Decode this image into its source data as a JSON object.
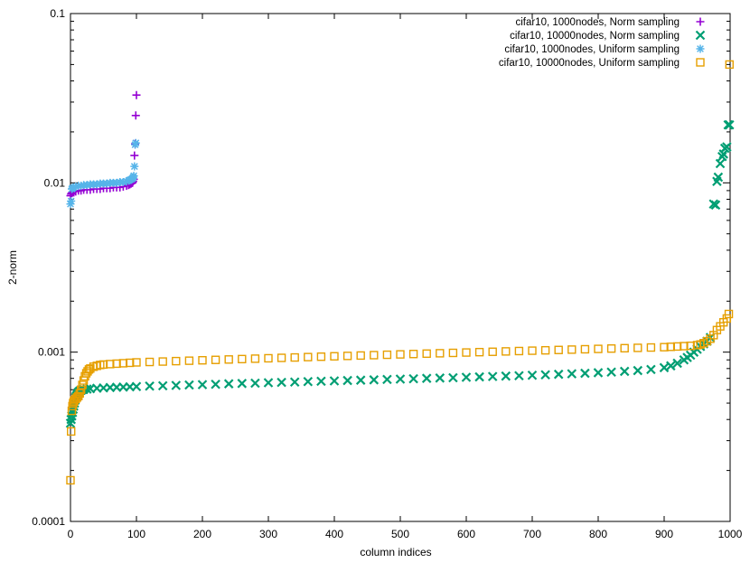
{
  "chart_data": {
    "type": "scatter",
    "title": "",
    "xlabel": "column indices",
    "ylabel": "2-norm",
    "xlim": [
      0,
      1000
    ],
    "ylim": [
      0.0001,
      0.1
    ],
    "yscale": "log",
    "grid": false,
    "legend_position": "top-right",
    "x_ticks": [
      0,
      100,
      200,
      300,
      400,
      500,
      600,
      700,
      800,
      900,
      1000
    ],
    "x_tick_labels": [
      "0",
      "100",
      "200",
      "300",
      "400",
      "500",
      "600",
      "700",
      "800",
      "900",
      "1000"
    ],
    "y_ticks": [
      0.0001,
      0.001,
      0.01,
      0.1
    ],
    "y_tick_labels": [
      "0.0001",
      "0.001",
      "0.01",
      "0.1"
    ],
    "series": [
      {
        "name": "cifar10, 1000nodes, Norm sampling",
        "marker": "plus",
        "color": "#9400d3",
        "x": [
          0,
          1,
          2,
          3,
          5,
          8,
          12,
          16,
          20,
          25,
          30,
          35,
          40,
          45,
          50,
          55,
          60,
          65,
          70,
          75,
          80,
          85,
          88,
          90,
          92,
          94,
          95,
          96,
          97,
          98,
          99,
          100
        ],
        "y": [
          0.0084,
          0.0086,
          0.0087,
          0.0088,
          0.0089,
          0.0089,
          0.009,
          0.009,
          0.0091,
          0.0091,
          0.0091,
          0.0092,
          0.0092,
          0.0092,
          0.0093,
          0.0093,
          0.0093,
          0.0094,
          0.0094,
          0.0094,
          0.0095,
          0.0096,
          0.0097,
          0.0098,
          0.0099,
          0.01,
          0.0102,
          0.0105,
          0.0145,
          0.017,
          0.025,
          0.033
        ]
      },
      {
        "name": "cifar10, 10000nodes, Norm sampling",
        "marker": "cross",
        "color": "#009e73",
        "x": [
          0,
          1,
          2,
          3,
          4,
          5,
          6,
          7,
          8,
          9,
          10,
          11,
          12,
          14,
          16,
          18,
          20,
          25,
          30,
          40,
          50,
          60,
          70,
          80,
          90,
          100,
          120,
          140,
          160,
          180,
          200,
          220,
          240,
          260,
          280,
          300,
          320,
          340,
          360,
          380,
          400,
          420,
          440,
          460,
          480,
          500,
          520,
          540,
          560,
          580,
          600,
          620,
          640,
          660,
          680,
          700,
          720,
          740,
          760,
          780,
          800,
          820,
          840,
          860,
          880,
          900,
          910,
          920,
          930,
          935,
          940,
          945,
          950,
          955,
          960,
          965,
          970,
          975,
          978,
          980,
          982,
          985,
          988,
          990,
          992,
          995,
          997,
          999
        ],
        "y": [
          0.00038,
          0.0004,
          0.00042,
          0.00044,
          0.00046,
          0.00048,
          0.0005,
          0.00052,
          0.00054,
          0.00055,
          0.00056,
          0.00057,
          0.00058,
          0.00059,
          0.000595,
          0.0006,
          0.000602,
          0.000605,
          0.000608,
          0.000612,
          0.000615,
          0.000618,
          0.00062,
          0.000622,
          0.000624,
          0.000626,
          0.00063,
          0.000633,
          0.000636,
          0.00064,
          0.000643,
          0.000646,
          0.00065,
          0.000653,
          0.000656,
          0.00066,
          0.000663,
          0.000666,
          0.00067,
          0.000673,
          0.000676,
          0.00068,
          0.000683,
          0.000686,
          0.00069,
          0.000693,
          0.000696,
          0.0007,
          0.000703,
          0.000706,
          0.00071,
          0.000714,
          0.000718,
          0.000722,
          0.000726,
          0.00073,
          0.000735,
          0.00074,
          0.000745,
          0.00075,
          0.000756,
          0.000762,
          0.00077,
          0.000778,
          0.00079,
          0.00081,
          0.00083,
          0.00086,
          0.0009,
          0.00093,
          0.00096,
          0.001,
          0.00104,
          0.00108,
          0.00112,
          0.00116,
          0.00122,
          0.0075,
          0.0074,
          0.0102,
          0.0108,
          0.013,
          0.0143,
          0.0148,
          0.016,
          0.0163,
          0.022,
          0.022
        ]
      },
      {
        "name": "cifar10, 1000nodes, Uniform sampling",
        "marker": "star",
        "color": "#56b4e9",
        "x": [
          0,
          1,
          2,
          3,
          5,
          8,
          12,
          16,
          20,
          25,
          30,
          35,
          40,
          45,
          50,
          55,
          60,
          65,
          70,
          75,
          80,
          85,
          88,
          90,
          92,
          94,
          95,
          96,
          97,
          98,
          99
        ],
        "y": [
          0.0075,
          0.0078,
          0.0092,
          0.0093,
          0.0094,
          0.0095,
          0.0096,
          0.0096,
          0.0097,
          0.0097,
          0.0098,
          0.0098,
          0.0098,
          0.0099,
          0.0099,
          0.0099,
          0.01,
          0.01,
          0.01,
          0.0101,
          0.0101,
          0.0102,
          0.0103,
          0.0104,
          0.0105,
          0.0106,
          0.0108,
          0.011,
          0.0125,
          0.0168,
          0.0172
        ]
      },
      {
        "name": "cifar10, 10000nodes, Uniform sampling",
        "marker": "square",
        "color": "#e69f00",
        "x": [
          0,
          1,
          2,
          3,
          4,
          5,
          6,
          8,
          10,
          12,
          14,
          16,
          18,
          20,
          22,
          24,
          26,
          28,
          30,
          35,
          40,
          45,
          50,
          60,
          70,
          80,
          90,
          100,
          120,
          140,
          160,
          180,
          200,
          220,
          240,
          260,
          280,
          300,
          320,
          340,
          360,
          380,
          400,
          420,
          440,
          460,
          480,
          500,
          520,
          540,
          560,
          580,
          600,
          620,
          640,
          660,
          680,
          700,
          720,
          740,
          760,
          780,
          800,
          820,
          840,
          860,
          880,
          900,
          910,
          920,
          930,
          940,
          950,
          955,
          960,
          965,
          970,
          975,
          980,
          985,
          990,
          995,
          998,
          999
        ],
        "y": [
          0.000175,
          0.00034,
          0.00045,
          0.00048,
          0.0005,
          0.00051,
          0.00052,
          0.00053,
          0.00054,
          0.00055,
          0.00057,
          0.0006,
          0.00064,
          0.00068,
          0.00072,
          0.00075,
          0.00077,
          0.00079,
          0.0008,
          0.00082,
          0.00083,
          0.00084,
          0.000845,
          0.00085,
          0.000855,
          0.00086,
          0.000865,
          0.00087,
          0.000875,
          0.00088,
          0.000885,
          0.00089,
          0.000895,
          0.0009,
          0.000905,
          0.00091,
          0.000915,
          0.00092,
          0.000925,
          0.00093,
          0.000935,
          0.00094,
          0.000945,
          0.00095,
          0.000955,
          0.00096,
          0.000965,
          0.00097,
          0.000975,
          0.00098,
          0.000985,
          0.00099,
          0.000995,
          0.001,
          0.001005,
          0.00101,
          0.001015,
          0.00102,
          0.001025,
          0.00103,
          0.001035,
          0.00104,
          0.001045,
          0.00105,
          0.001055,
          0.00106,
          0.001065,
          0.00107,
          0.001075,
          0.00108,
          0.001085,
          0.00109,
          0.0011,
          0.00111,
          0.00113,
          0.00116,
          0.0012,
          0.00126,
          0.00135,
          0.00142,
          0.0015,
          0.00158,
          0.00168,
          0.05
        ]
      }
    ]
  }
}
